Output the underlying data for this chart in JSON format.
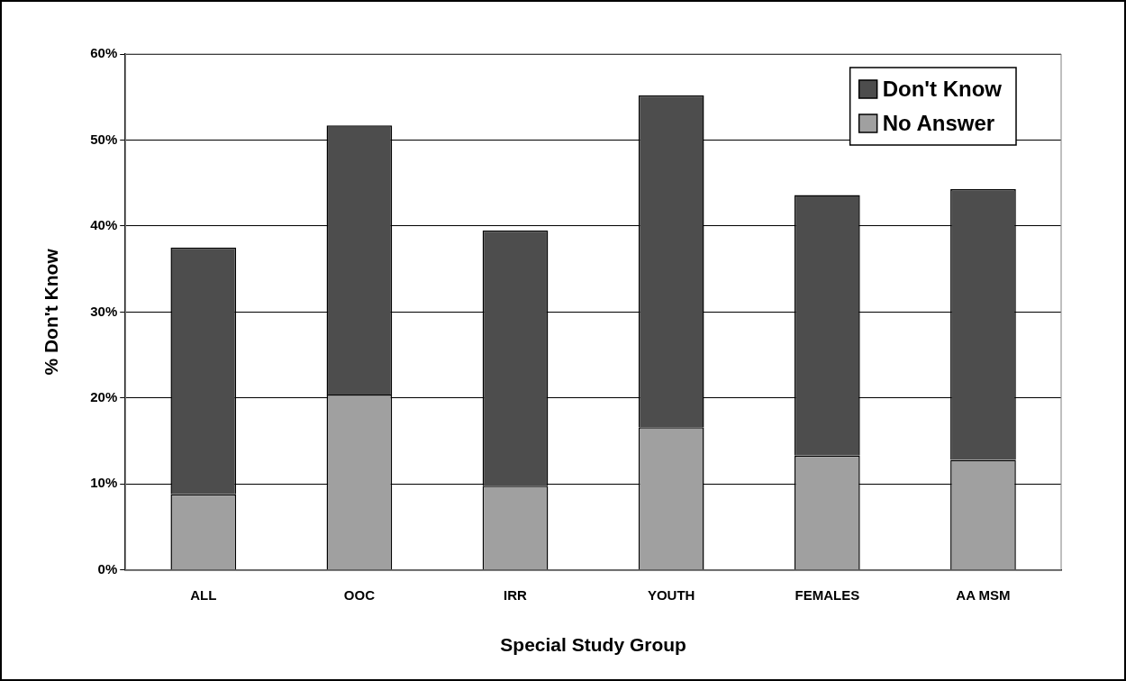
{
  "chart_data": {
    "type": "bar",
    "stacked": true,
    "xlabel": "Special Study Group",
    "ylabel": "% Don't Know",
    "categories": [
      "ALL",
      "OOC",
      "IRR",
      "YOUTH",
      "FEMALES",
      "AA MSM"
    ],
    "series": [
      {
        "name": "No Answer",
        "color": "#a0a0a0",
        "values": [
          8.8,
          20.4,
          9.8,
          16.6,
          13.3,
          12.8
        ]
      },
      {
        "name": "Don't Know",
        "color": "#4d4d4d",
        "values": [
          28.7,
          31.3,
          29.7,
          38.6,
          30.3,
          31.5
        ]
      }
    ],
    "ylim": [
      0,
      60
    ],
    "yticks": [
      {
        "value": 0,
        "label": "0%"
      },
      {
        "value": 10,
        "label": "10%"
      },
      {
        "value": 20,
        "label": "20%"
      },
      {
        "value": 30,
        "label": "30%"
      },
      {
        "value": 40,
        "label": "40%"
      },
      {
        "value": 50,
        "label": "50%"
      },
      {
        "value": 60,
        "label": "60%"
      }
    ],
    "grid": "y",
    "legend": "top right"
  }
}
